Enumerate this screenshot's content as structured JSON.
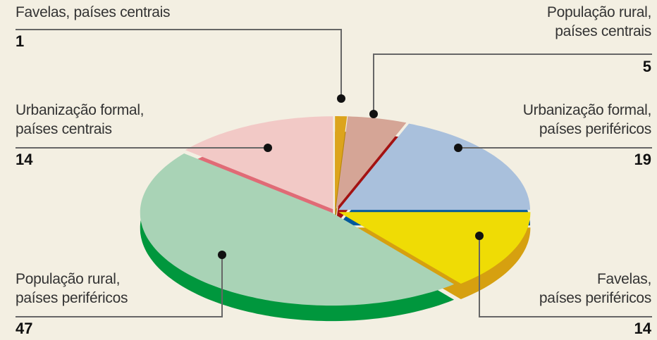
{
  "chart_data": {
    "type": "pie",
    "categories": [
      "Favelas, países centrais",
      "População rural,\npaíses centrais",
      "Urbanização formal,\npaíses periféricos",
      "Favelas,\npaíses periféricos",
      "População rural,\npaíses periféricos",
      "Urbanização formal,\npaíses centrais"
    ],
    "values": [
      1,
      5,
      19,
      14,
      47,
      14
    ],
    "colors": [
      "#dca41c",
      "#d5a596",
      "#a9c0dc",
      "#efdc05",
      "#a9d3b6",
      "#f2c9c6"
    ],
    "side_colors": [
      "#b8860b",
      "#a31212",
      "#00599b",
      "#d6a010",
      "#00973d",
      "#e06b76"
    ]
  }
}
